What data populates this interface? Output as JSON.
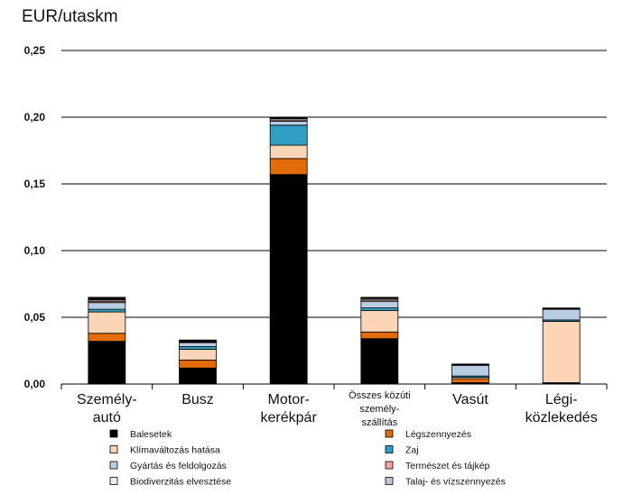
{
  "chart_data": {
    "type": "bar",
    "stacked": true,
    "ylabel": "EUR/utaskm",
    "ylim": [
      0,
      0.25
    ],
    "yticks": [
      "0,00",
      "0,05",
      "0,10",
      "0,15",
      "0,20",
      "0,25"
    ],
    "ytick_values": [
      0,
      0.05,
      0.1,
      0.15,
      0.2,
      0.25
    ],
    "grid": true,
    "legend_position": "bottom",
    "categories": [
      [
        "Személy-",
        "autó"
      ],
      [
        "Busz"
      ],
      [
        "Motor-",
        "kerékpár"
      ],
      [
        "Összes közúti",
        "személy-",
        "szállítás"
      ],
      [
        "Vasút"
      ],
      [
        "Légi-",
        "közlekedés"
      ]
    ],
    "series": [
      {
        "name": "Balesetek",
        "color": "#000000",
        "values": [
          0.032,
          0.012,
          0.157,
          0.034,
          0.001,
          0.001
        ]
      },
      {
        "name": "Légszennyezés",
        "color": "#e36c0a",
        "values": [
          0.006,
          0.006,
          0.012,
          0.005,
          0.003,
          0.0
        ]
      },
      {
        "name": "Klímaváltozás hatása",
        "color": "#fbd5b5",
        "values": [
          0.016,
          0.008,
          0.01,
          0.016,
          0.001,
          0.046
        ]
      },
      {
        "name": "Zaj",
        "color": "#31a0c5",
        "values": [
          0.002,
          0.002,
          0.015,
          0.002,
          0.001,
          0.001
        ]
      },
      {
        "name": "Gyártás és feldolgozás",
        "color": "#b8cce4",
        "values": [
          0.005,
          0.003,
          0.003,
          0.005,
          0.008,
          0.008
        ]
      },
      {
        "name": "Természet és tájkép",
        "color": "#f2a69a",
        "values": [
          0.001,
          0.0,
          0.001,
          0.001,
          0.0,
          0.0
        ]
      },
      {
        "name": "Biodiverzitás elvesztése",
        "color": "#ebf1de",
        "values": [
          0.001,
          0.0,
          0.001,
          0.001,
          0.0,
          0.0
        ]
      },
      {
        "name": "Talaj- és vízszennyezés",
        "color": "#ccc0da",
        "values": [
          0.0,
          0.0,
          0.0,
          0.0,
          0.0,
          0.0
        ]
      },
      {
        "name": "",
        "color": "#000000",
        "values": [
          0.002,
          0.002,
          0.001,
          0.001,
          0.001,
          0.001
        ]
      }
    ],
    "legend": [
      {
        "name": "Balesetek",
        "color": "#000000"
      },
      {
        "name": "Légszennyezés",
        "color": "#e36c0a"
      },
      {
        "name": "Klímaváltozás hatása",
        "color": "#fbd5b5"
      },
      {
        "name": "Zaj",
        "color": "#31a0c5"
      },
      {
        "name": "Gyártás és feldolgozás",
        "color": "#b8cce4"
      },
      {
        "name": "Természet és tájkép",
        "color": "#f2a69a"
      },
      {
        "name": "Biodiverzitás elvesztése",
        "color": "#ebf1de"
      },
      {
        "name": "Talaj- és vízszennyezés",
        "color": "#ccc0da"
      }
    ]
  }
}
